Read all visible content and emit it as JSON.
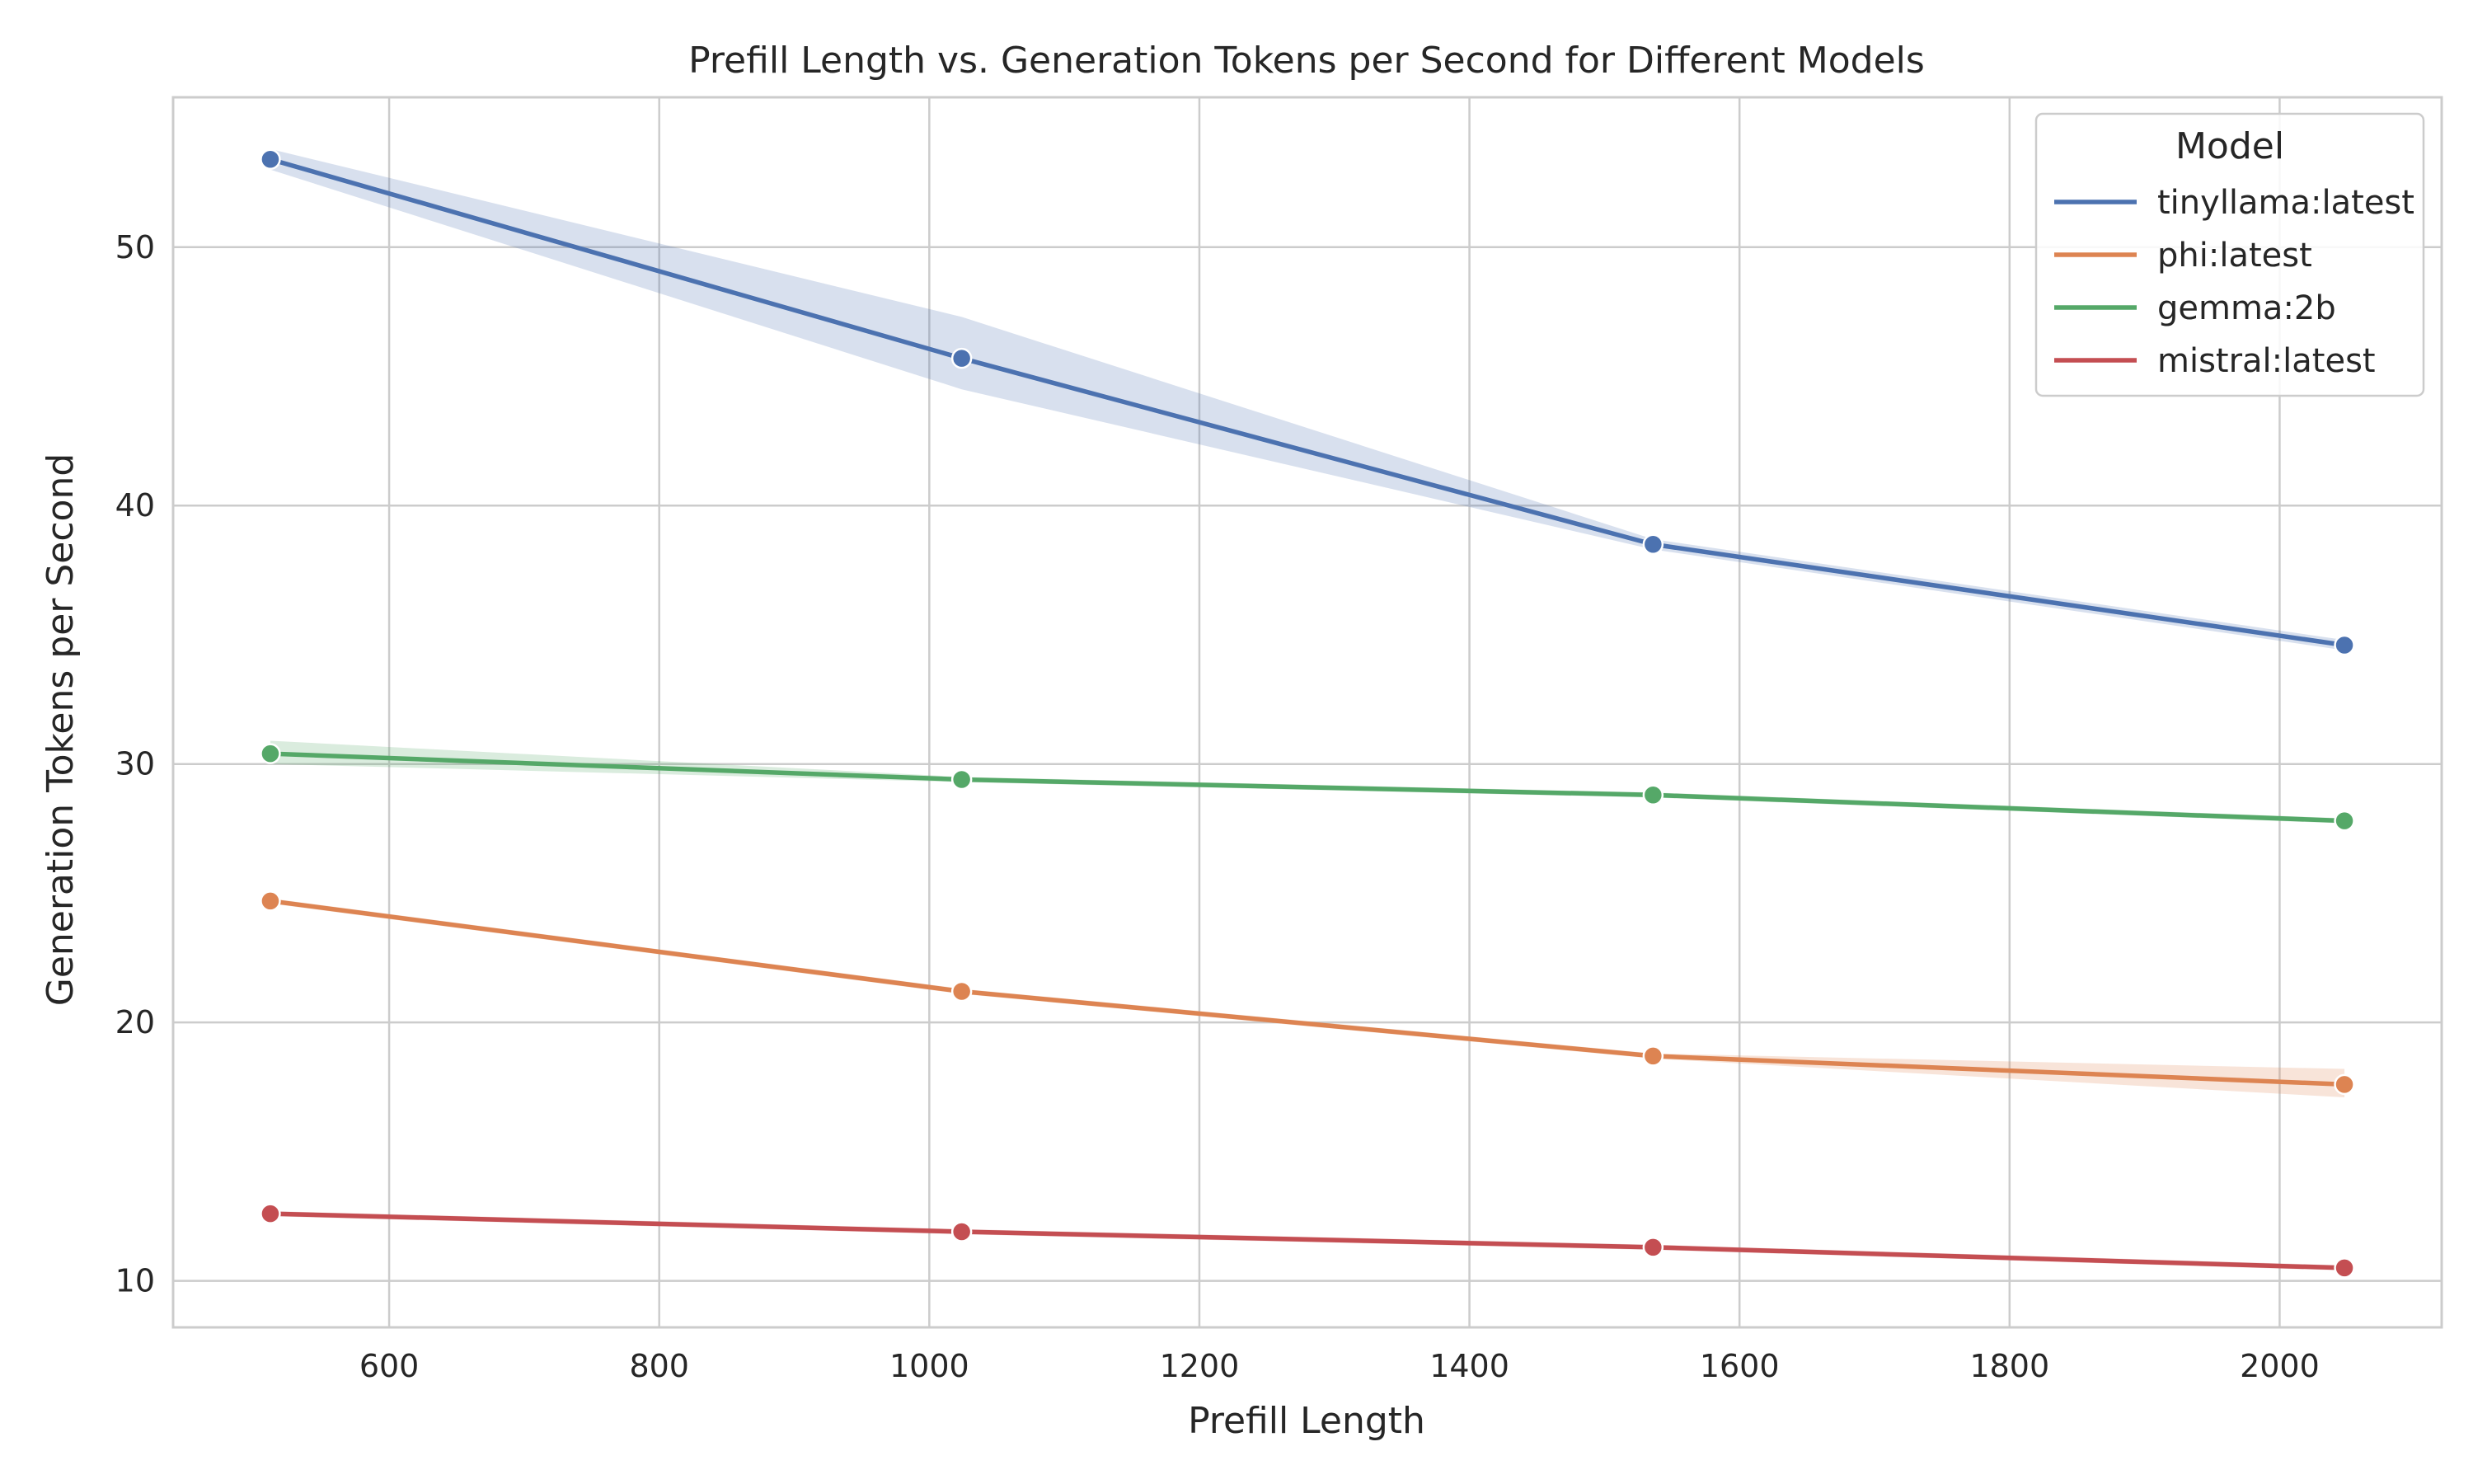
{
  "chart_data": {
    "type": "line",
    "title": "Prefill Length vs. Generation Tokens per Second for Different Models",
    "xlabel": "Prefill Length",
    "ylabel": "Generation Tokens per Second",
    "xlim": [
      440,
      2120
    ],
    "ylim": [
      8.2,
      55.8
    ],
    "xticks": [
      600,
      800,
      1000,
      1200,
      1400,
      1600,
      1800,
      2000
    ],
    "yticks": [
      10,
      20,
      30,
      40,
      50
    ],
    "grid": true,
    "legend": {
      "title": "Model",
      "position": "top-right"
    },
    "x": [
      512,
      1024,
      1536,
      2048
    ],
    "series": [
      {
        "name": "tinyllama:latest",
        "color": "#4c72b0",
        "values": [
          53.4,
          45.7,
          38.5,
          34.6
        ],
        "ci_low": [
          53.0,
          44.5,
          38.3,
          34.4
        ],
        "ci_high": [
          53.8,
          47.3,
          38.7,
          34.8
        ]
      },
      {
        "name": "phi:latest",
        "color": "#dd8452",
        "values": [
          24.7,
          21.2,
          18.7,
          17.6
        ],
        "ci_low": [
          24.6,
          21.1,
          18.6,
          17.1
        ],
        "ci_high": [
          24.8,
          21.3,
          18.8,
          18.2
        ]
      },
      {
        "name": "gemma:2b",
        "color": "#55a868",
        "values": [
          30.4,
          29.4,
          28.8,
          27.8
        ],
        "ci_low": [
          30.0,
          29.3,
          28.7,
          27.7
        ],
        "ci_high": [
          30.9,
          29.5,
          28.9,
          27.9
        ]
      },
      {
        "name": "mistral:latest",
        "color": "#c44e52",
        "values": [
          12.6,
          11.9,
          11.3,
          10.5
        ],
        "ci_low": [
          12.5,
          11.8,
          11.2,
          10.4
        ],
        "ci_high": [
          12.7,
          12.0,
          11.4,
          10.6
        ]
      }
    ]
  }
}
